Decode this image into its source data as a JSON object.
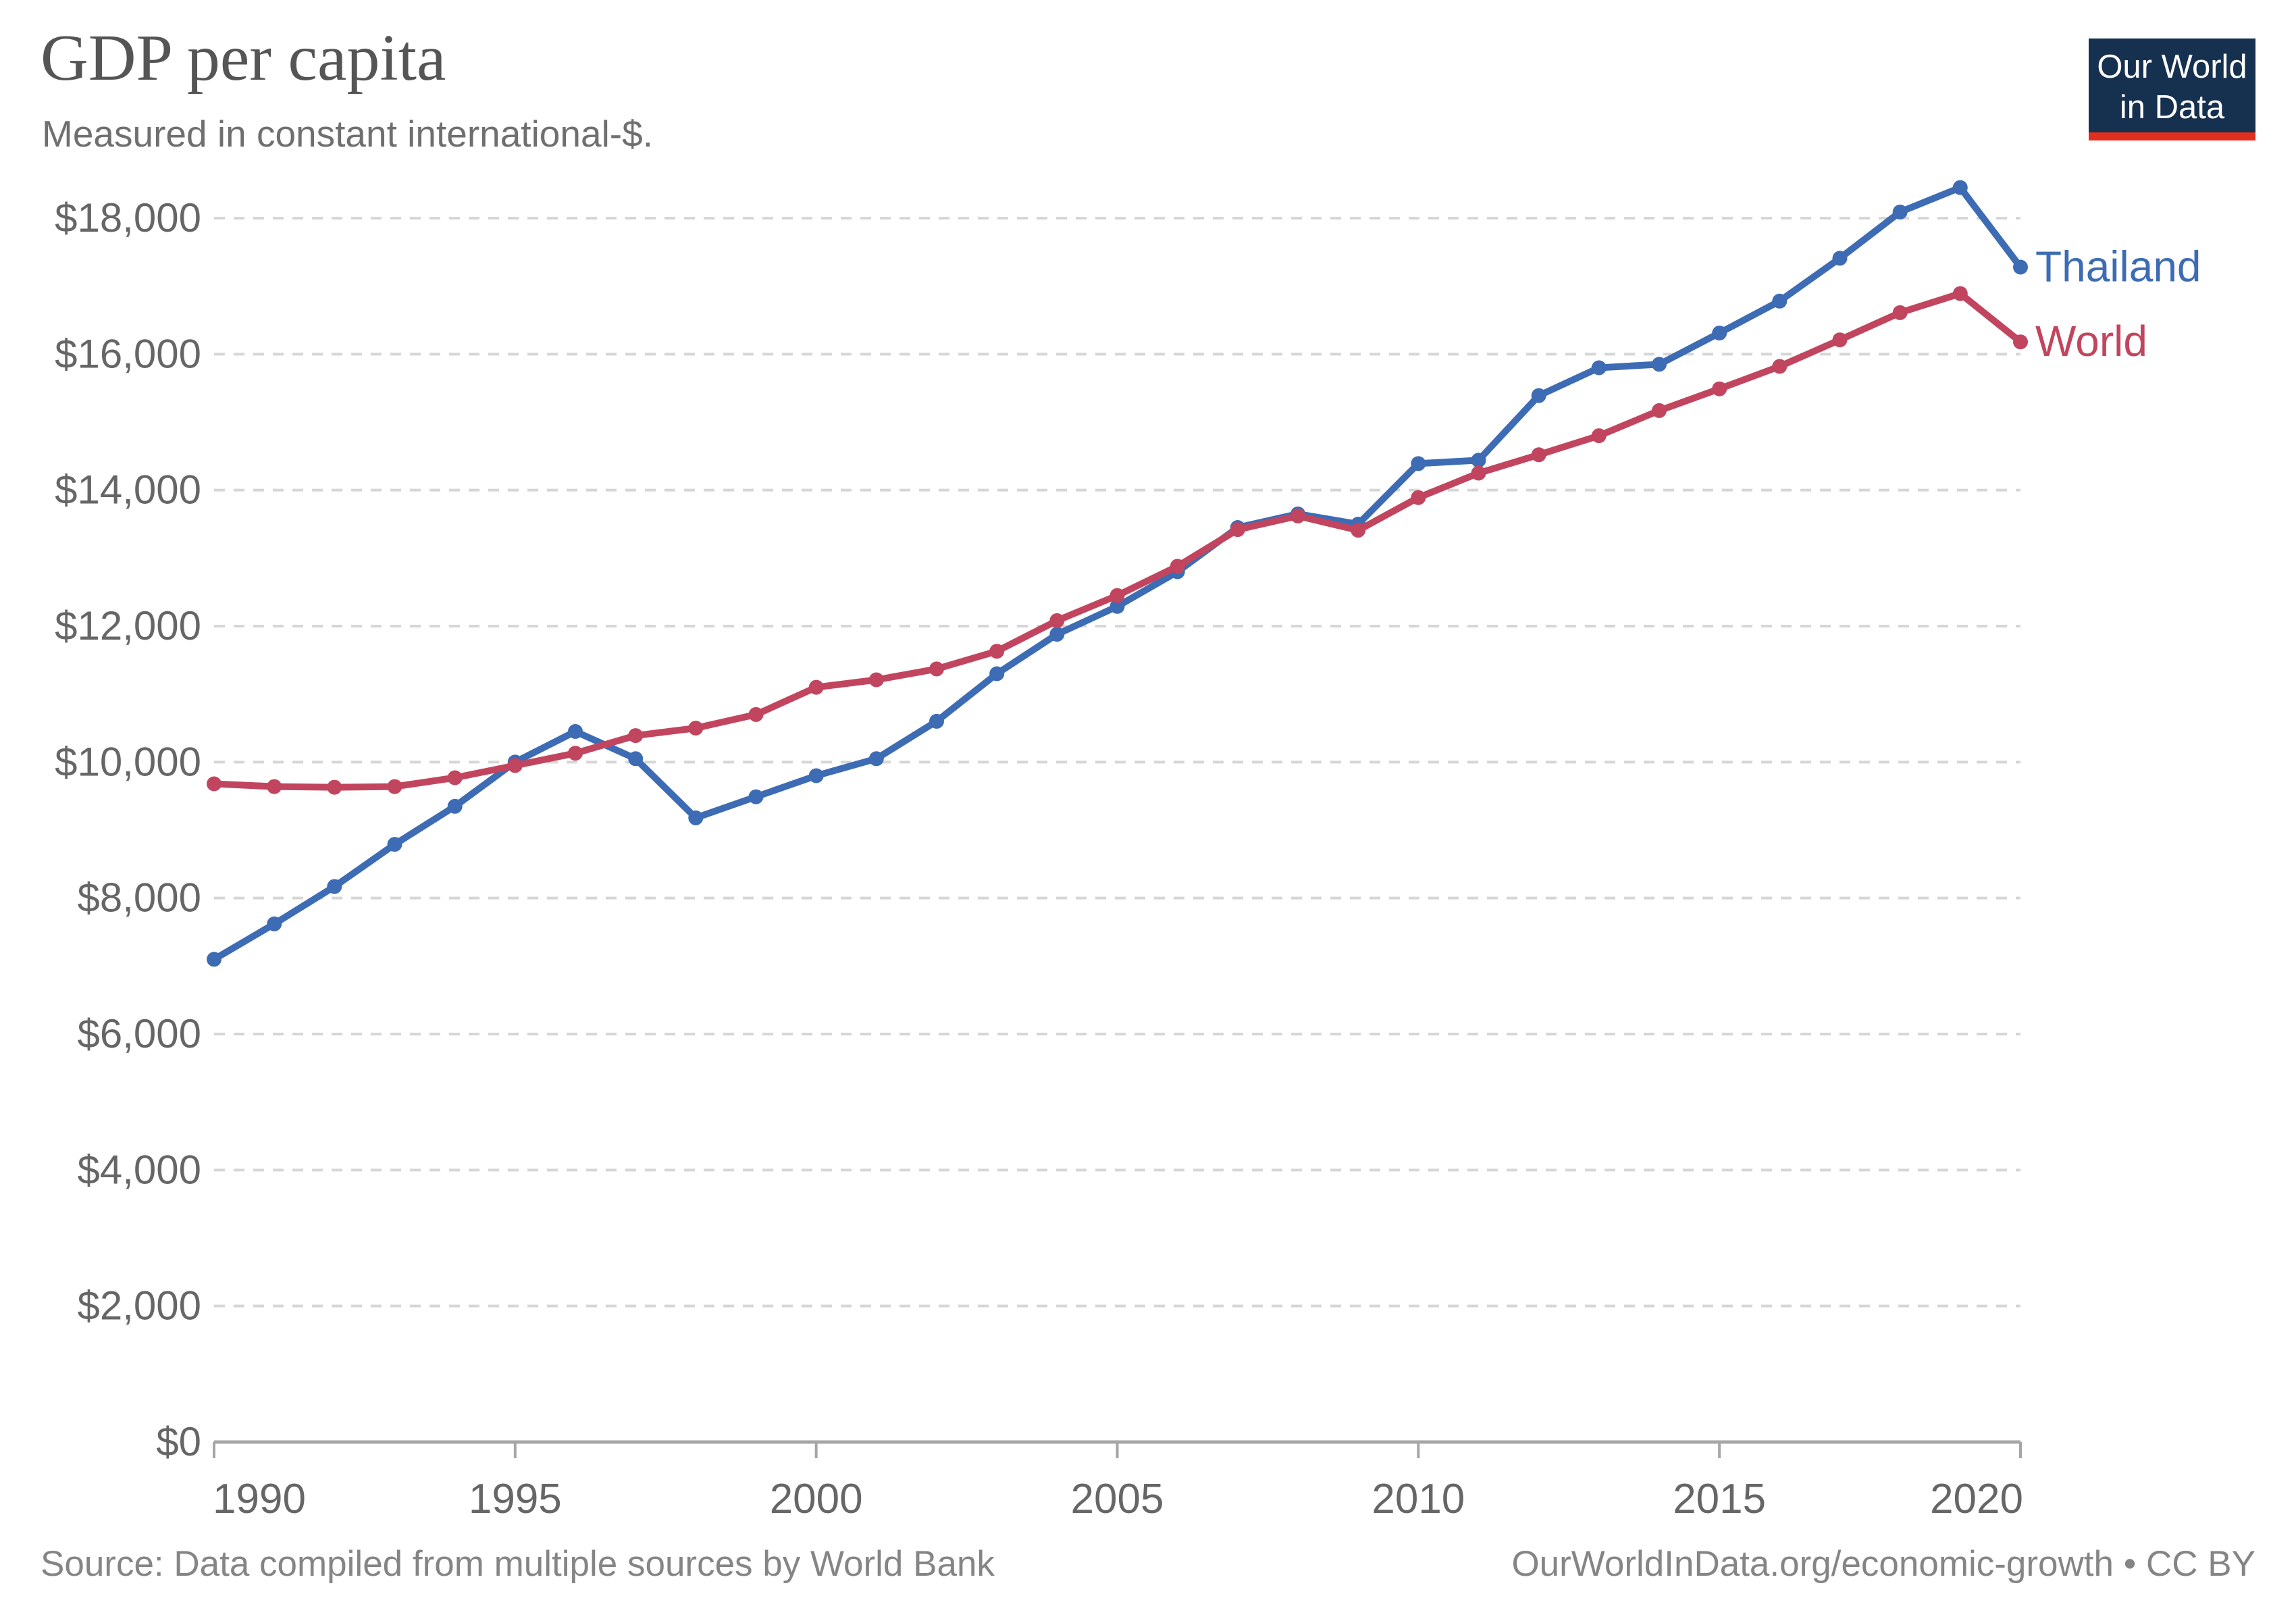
{
  "header": {
    "title": "GDP per capita",
    "subtitle": "Measured in constant international-$."
  },
  "logo": {
    "line1": "Our World",
    "line2": "in Data",
    "bg_color": "#16304f",
    "bar_color": "#e02f1f"
  },
  "footer": {
    "source": "Source: Data compiled from multiple sources by World Bank",
    "attribution": "OurWorldInData.org/economic-growth • CC BY"
  },
  "chart_data": {
    "type": "line",
    "title": "GDP per capita",
    "subtitle": "Measured in constant international-$.",
    "xlabel": "",
    "ylabel": "",
    "x": [
      1990,
      1991,
      1992,
      1993,
      1994,
      1995,
      1996,
      1997,
      1998,
      1999,
      2000,
      2001,
      2002,
      2003,
      2004,
      2005,
      2006,
      2007,
      2008,
      2009,
      2010,
      2011,
      2012,
      2013,
      2014,
      2015,
      2016,
      2017,
      2018,
      2019,
      2020
    ],
    "series": [
      {
        "name": "Thailand",
        "color": "#3d6cb4",
        "values": [
          7100,
          7620,
          8170,
          8790,
          9350,
          10000,
          10450,
          10050,
          9180,
          9490,
          9800,
          10050,
          10600,
          11300,
          11880,
          12290,
          12800,
          13450,
          13650,
          13500,
          14390,
          14440,
          15390,
          15800,
          15850,
          16310,
          16780,
          17410,
          18090,
          18450,
          17280
        ]
      },
      {
        "name": "World",
        "color": "#c2455f",
        "values": [
          9680,
          9640,
          9630,
          9640,
          9770,
          9950,
          10130,
          10390,
          10500,
          10700,
          11100,
          11210,
          11370,
          11630,
          12080,
          12450,
          12880,
          13420,
          13620,
          13410,
          13890,
          14250,
          14520,
          14800,
          15170,
          15490,
          15820,
          16210,
          16610,
          16890,
          16180
        ]
      }
    ],
    "x_ticks": [
      1990,
      1995,
      2000,
      2005,
      2010,
      2015,
      2020
    ],
    "y_ticks": [
      0,
      2000,
      4000,
      6000,
      8000,
      10000,
      12000,
      14000,
      16000,
      18000
    ],
    "y_tick_prefix": "$",
    "xlim": [
      1990,
      2020
    ],
    "ylim": [
      0,
      18450
    ],
    "grid": "horizontal-dashed",
    "legend": "end-of-line-labels",
    "grid_color": "#d6d6d6",
    "axis_color": "#a6a6a6",
    "tick_label_color": "#666666"
  }
}
